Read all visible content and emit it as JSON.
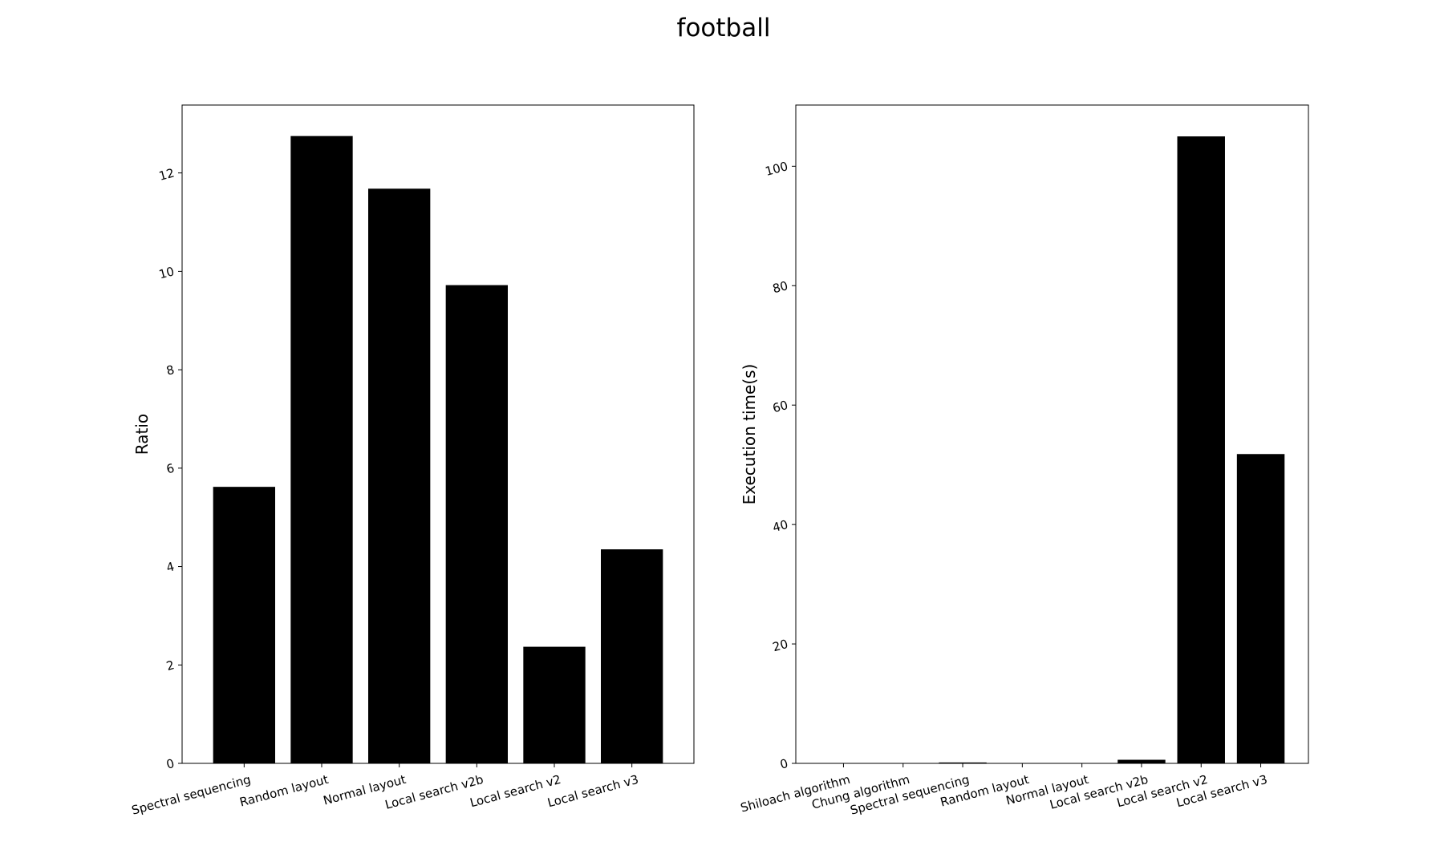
{
  "figure": {
    "title": "football"
  },
  "chart_data": [
    {
      "type": "bar",
      "title": "",
      "xlabel": "",
      "ylabel": "Ratio",
      "categories": [
        "Spectral sequencing",
        "Random layout",
        "Normal layout",
        "Local search v2b",
        "Local search v2",
        "Local search v3"
      ],
      "values": [
        5.62,
        12.75,
        11.68,
        9.72,
        2.37,
        4.35
      ],
      "ylim": [
        0,
        13.38
      ],
      "yticks": [
        0,
        2,
        4,
        6,
        8,
        10,
        12
      ],
      "bar_color": "#000000",
      "grid": false
    },
    {
      "type": "bar",
      "title": "",
      "xlabel": "",
      "ylabel": "Execution time(s)",
      "categories": [
        "Shiloach algorithm",
        "Chung algorithm",
        "Spectral sequencing",
        "Random layout",
        "Normal layout",
        "Local search v2b",
        "Local search v2",
        "Local search v3"
      ],
      "values": [
        0.01,
        0.01,
        0.15,
        0.0,
        0.01,
        0.6,
        105.0,
        51.8
      ],
      "ylim": [
        0,
        110.25
      ],
      "yticks": [
        0,
        20,
        40,
        60,
        80,
        100
      ],
      "bar_color": "#000000",
      "grid": false
    }
  ]
}
